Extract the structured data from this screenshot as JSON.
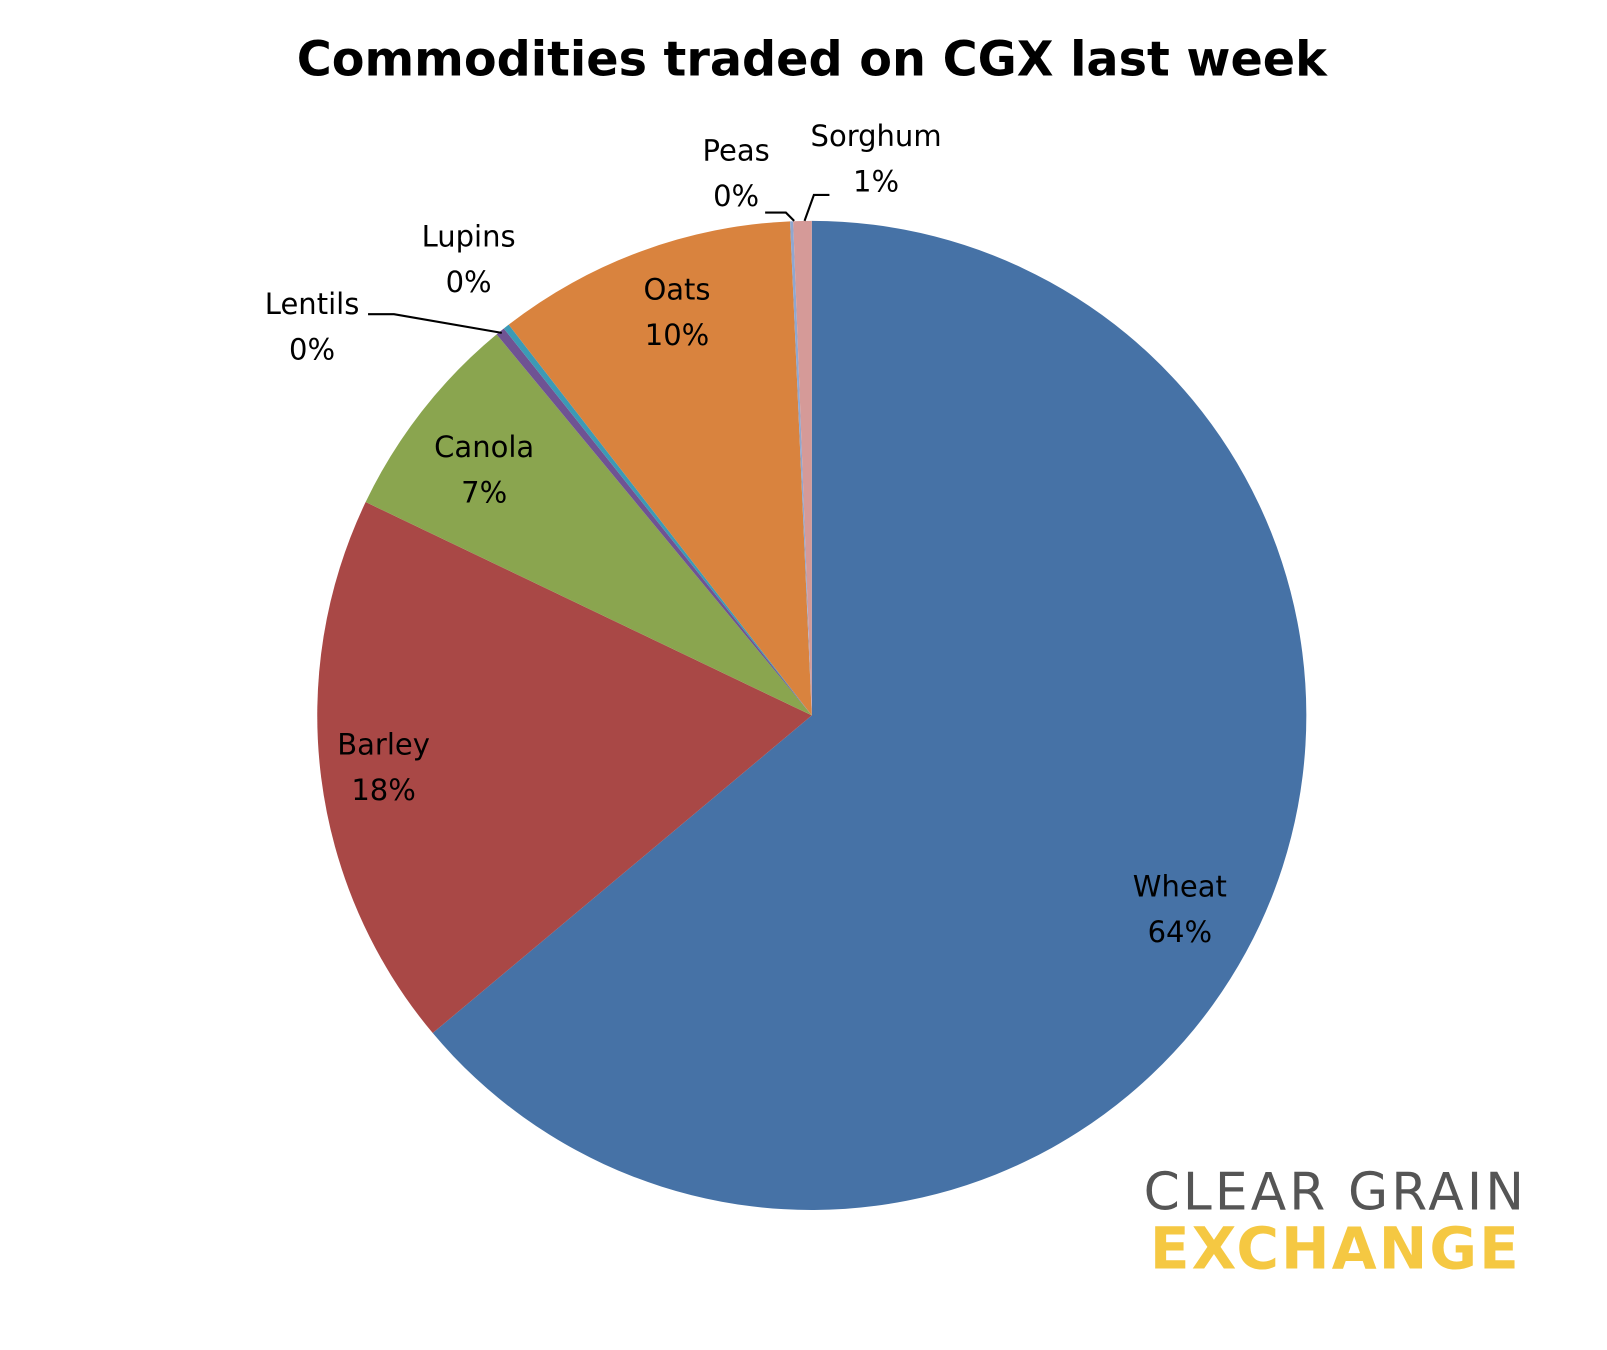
{
  "chart_data": {
    "type": "pie",
    "title": "Commodities traded on CGX last week",
    "categories": [
      "Wheat",
      "Barley",
      "Canola",
      "Lentils",
      "Lupins",
      "Oats",
      "Peas",
      "Sorghum"
    ],
    "values": [
      63.9,
      18.2,
      6.9,
      0.3,
      0.2,
      9.8,
      0.1,
      0.6
    ],
    "value_labels": [
      "64%",
      "18%",
      "7%",
      "0%",
      "0%",
      "10%",
      "0%",
      "1%"
    ],
    "colors": [
      "#4672a6",
      "#a94846",
      "#8aa54f",
      "#6f5393",
      "#3c9ab5",
      "#d9833e",
      "#8fa7d0",
      "#d59a98"
    ]
  },
  "logo": {
    "line1": "CLEAR GRAIN",
    "line2": "EXCHANGE"
  }
}
